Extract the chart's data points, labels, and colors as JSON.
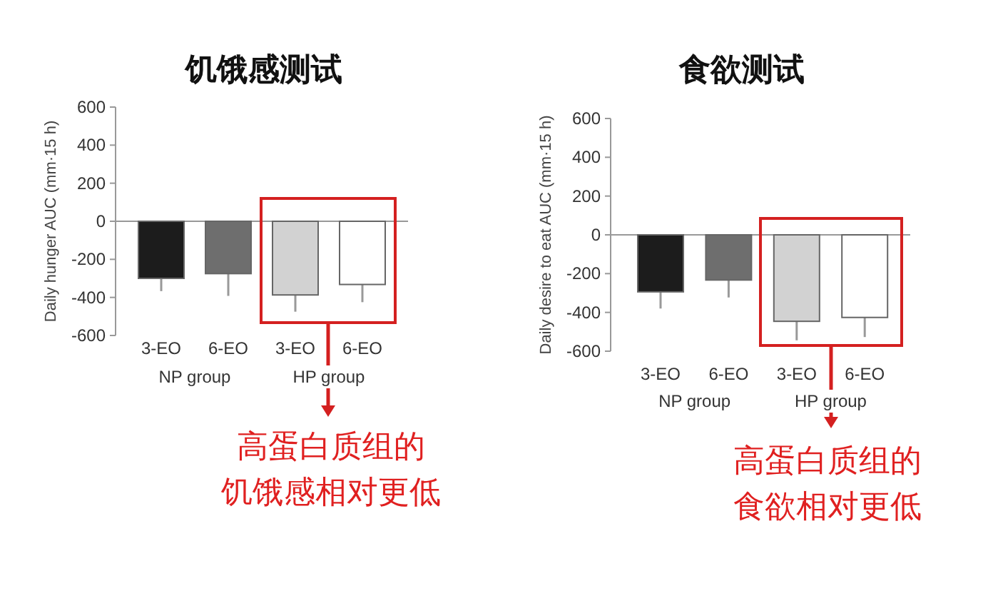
{
  "chart_data": [
    {
      "type": "bar",
      "title": "饥饿感测试",
      "ylabel": "Daily hunger AUC (mm·15 h)",
      "categories": [
        "3-EO",
        "6-EO",
        "3-EO",
        "6-EO"
      ],
      "values": [
        -300,
        -275,
        -387,
        -332
      ],
      "errors": [
        [
          -367,
          -300
        ],
        [
          -392,
          -275
        ],
        [
          -475,
          -387
        ],
        [
          -425,
          -332
        ]
      ],
      "colors": [
        "#1c1c1c",
        "#6e6e6e",
        "#d2d2d2",
        "#ffffff"
      ],
      "ylim": [
        -600,
        600
      ],
      "yticks": [
        -600,
        -400,
        -200,
        0,
        200,
        400,
        600
      ],
      "annotations": [
        "NP group",
        "HP group",
        "高蛋白质组的饥饿感相对更低"
      ]
    },
    {
      "type": "bar",
      "title": "食欲测试",
      "ylabel": "Daily desire to eat AUC (mm·15 h)",
      "categories": [
        "3-EO",
        "6-EO",
        "3-EO",
        "6-EO"
      ],
      "values": [
        -294,
        -233,
        -446,
        -426
      ],
      "errors": [
        [
          -380,
          -294
        ],
        [
          -323,
          -233
        ],
        [
          -544,
          -446
        ],
        [
          -527,
          -426
        ]
      ],
      "colors": [
        "#1c1c1c",
        "#6e6e6e",
        "#d2d2d2",
        "#ffffff"
      ],
      "ylim": [
        -600,
        600
      ],
      "yticks": [
        -600,
        -400,
        -200,
        0,
        200,
        400,
        600
      ],
      "annotations": [
        "NP group",
        "HP group",
        "高蛋白质组的食欲相对更低"
      ]
    }
  ]
}
